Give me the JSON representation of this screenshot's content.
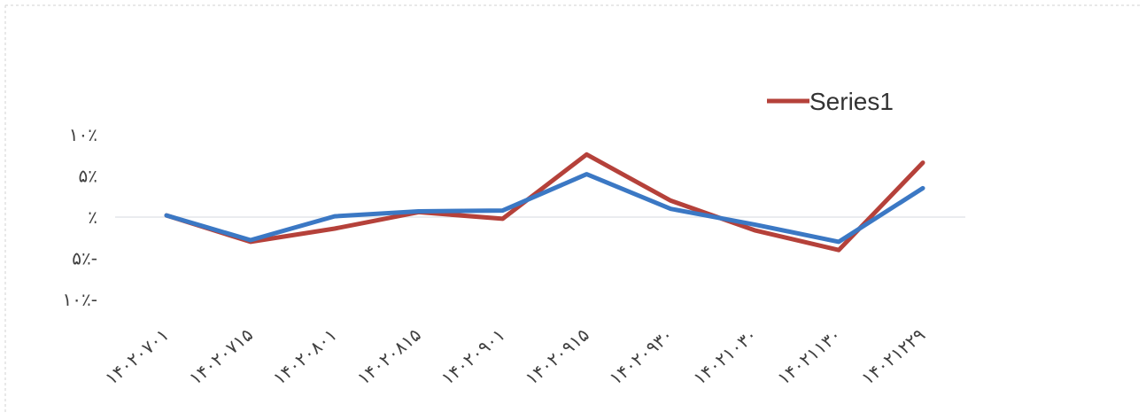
{
  "chart_data": {
    "type": "line",
    "title": "",
    "xlabel": "",
    "ylabel": "",
    "categories": [
      "۱۴۰۲۰۷۰۱",
      "۱۴۰۲۰۷۱۵",
      "۱۴۰۲۰۸۰۱",
      "۱۴۰۲۰۸۱۵",
      "۱۴۰۲۰۹۰۱",
      "۱۴۰۲۰۹۱۵",
      "۱۴۰۲۰۹۳۰",
      "۱۴۰۲۱۰۳۰",
      "۱۴۰۲۱۱۳۰",
      "۱۴۰۲۱۲۲۹"
    ],
    "y_ticks": [
      {
        "value": 10,
        "label": "۱۰٪"
      },
      {
        "value": 5,
        "label": "۵٪"
      },
      {
        "value": 0,
        "label": "٪"
      },
      {
        "value": -5,
        "label": "۵٪-"
      },
      {
        "value": -10,
        "label": "۱۰٪-"
      }
    ],
    "ylim": [
      -10,
      10
    ],
    "grid": false,
    "zero_line": true,
    "legend": {
      "position": "top-right",
      "shown": [
        "Series1"
      ]
    },
    "series": [
      {
        "name": "Series1",
        "color": "#b5413a",
        "values": [
          0.2,
          -3.0,
          -1.4,
          0.6,
          -0.2,
          7.6,
          2.0,
          -1.6,
          -4.0,
          6.6
        ]
      },
      {
        "name": "",
        "color": "#3b78c4",
        "values": [
          0.2,
          -2.8,
          0.1,
          0.7,
          0.8,
          5.2,
          1.0,
          -0.9,
          -3.0,
          3.5
        ]
      }
    ]
  }
}
